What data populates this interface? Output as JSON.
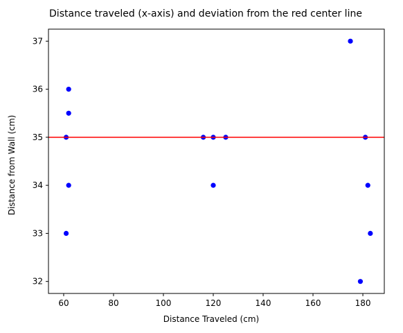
{
  "chart_data": {
    "type": "scatter",
    "title": "Distance traveled (x-axis) and deviation from the red center line",
    "xlabel": "Distance Traveled (cm)",
    "ylabel": "Distance from Wall (cm)",
    "xlim": [
      53.9,
      188.6
    ],
    "ylim": [
      31.75,
      37.25
    ],
    "xticks": [
      60,
      80,
      100,
      120,
      140,
      160,
      180
    ],
    "yticks": [
      32,
      33,
      34,
      35,
      36,
      37
    ],
    "grid": false,
    "point_color": "#0000ff",
    "reference_line": {
      "y": 35,
      "color": "#ff0000"
    },
    "series": [
      {
        "x": [
          61,
          61,
          62,
          62,
          62,
          116,
          120,
          120,
          125,
          175,
          179,
          181,
          182,
          183
        ],
        "y": [
          35,
          33,
          36,
          35.5,
          34,
          35,
          35,
          34,
          35,
          37,
          32,
          35,
          34,
          33
        ]
      }
    ]
  }
}
